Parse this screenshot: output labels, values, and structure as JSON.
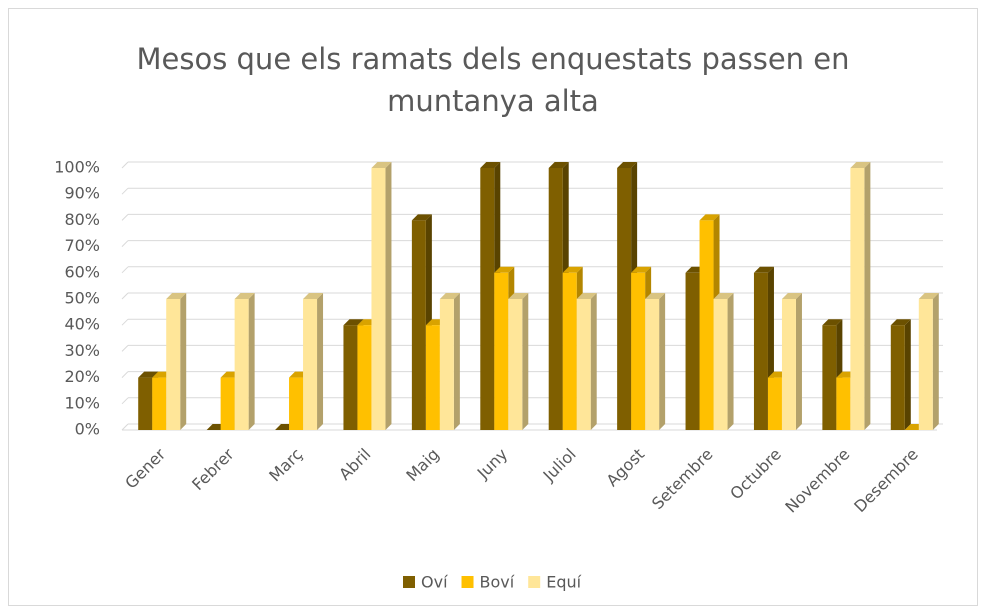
{
  "chart_data": {
    "type": "bar",
    "title": "Mesos que els ramats dels enquestats passen en muntanya alta",
    "categories": [
      "Gener",
      "Febrer",
      "Març",
      "Abril",
      "Maig",
      "Juny",
      "Juliol",
      "Agost",
      "Setembre",
      "Octubre",
      "Novembre",
      "Desembre"
    ],
    "series": [
      {
        "name": "Oví",
        "color": "#7f5f00",
        "values": [
          20,
          0,
          0,
          40,
          80,
          100,
          100,
          100,
          60,
          60,
          40,
          40
        ]
      },
      {
        "name": "Boví",
        "color": "#ffc000",
        "values": [
          20,
          20,
          20,
          40,
          40,
          60,
          60,
          60,
          80,
          20,
          20,
          0
        ]
      },
      {
        "name": "Equí",
        "color": "#ffe699",
        "values": [
          50,
          50,
          50,
          100,
          50,
          50,
          50,
          50,
          50,
          50,
          100,
          50
        ]
      }
    ],
    "ylim": [
      0,
      100
    ],
    "yticks": [
      {
        "value": 0,
        "label": "0%"
      },
      {
        "value": 10,
        "label": "10%"
      },
      {
        "value": 20,
        "label": "20%"
      },
      {
        "value": 30,
        "label": "30%"
      },
      {
        "value": 40,
        "label": "40%"
      },
      {
        "value": 50,
        "label": "50%"
      },
      {
        "value": 60,
        "label": "60%"
      },
      {
        "value": 70,
        "label": "70%"
      },
      {
        "value": 80,
        "label": "80%"
      },
      {
        "value": 90,
        "label": "90%"
      },
      {
        "value": 100,
        "label": "100%"
      }
    ],
    "grid": true,
    "legend": "bottom"
  }
}
